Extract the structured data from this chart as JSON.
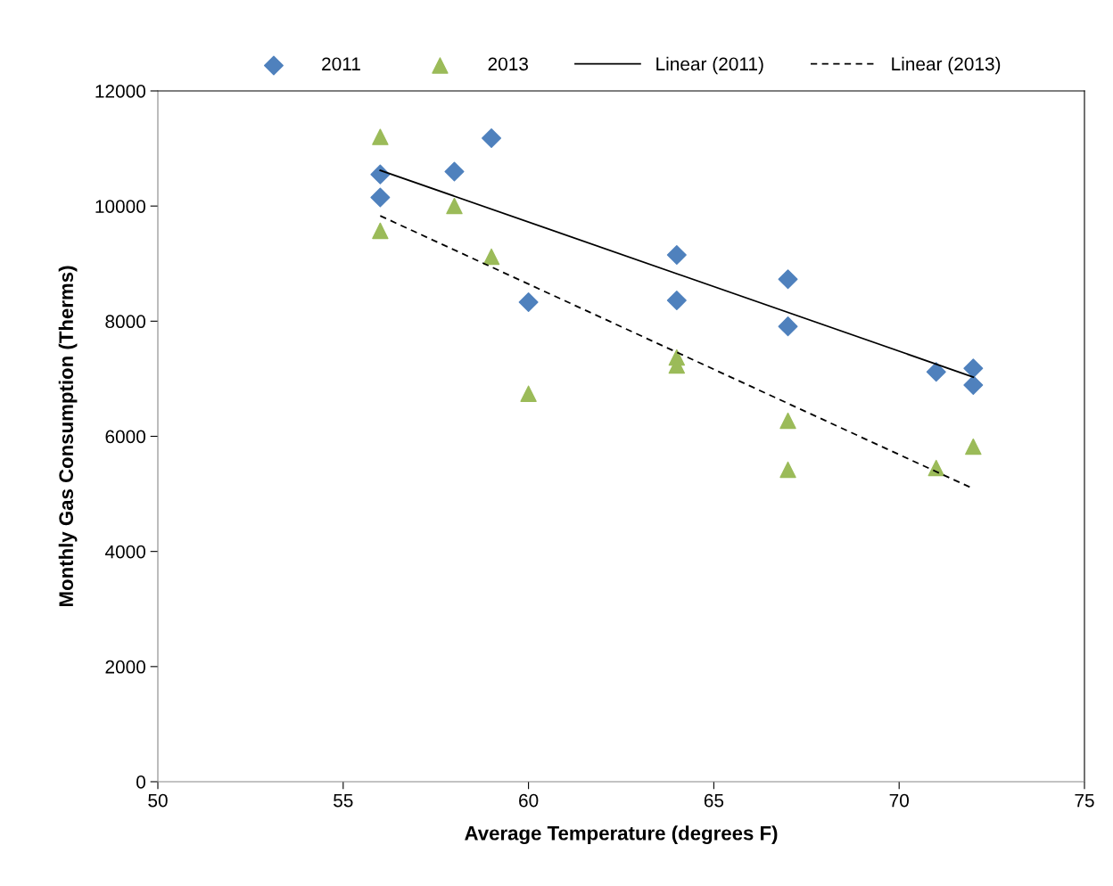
{
  "chart_data": {
    "type": "scatter",
    "xlabel": "Average Temperature (degrees F)",
    "ylabel": "Monthly Gas Consumption (Therms)",
    "xlim": [
      50,
      75
    ],
    "xticks": [
      50,
      55,
      60,
      65,
      70,
      75
    ],
    "ylim": [
      0,
      12000
    ],
    "yticks": [
      0,
      2000,
      4000,
      6000,
      8000,
      10000,
      12000
    ],
    "grid": false,
    "legend": "top",
    "series": [
      {
        "name": "2011",
        "marker": "diamond",
        "color": "#4f81bd",
        "x": [
          56,
          56,
          58,
          59,
          60,
          64,
          64,
          67,
          67,
          71,
          72,
          72
        ],
        "values": [
          10550,
          10150,
          10600,
          11180,
          8330,
          9150,
          8360,
          8730,
          7910,
          7120,
          7180,
          6890
        ]
      },
      {
        "name": "2013",
        "marker": "triangle",
        "color": "#9bbb59",
        "x": [
          56,
          56,
          58,
          59,
          60,
          64,
          64,
          67,
          67,
          71,
          72
        ],
        "values": [
          11200,
          9570,
          10000,
          9120,
          6740,
          7370,
          7230,
          6270,
          5420,
          5450,
          5820
        ]
      },
      {
        "name": "Linear (2011)",
        "type": "line",
        "line_style": "solid",
        "color": "#000000",
        "x": [
          56,
          72
        ],
        "values": [
          10620,
          7030
        ]
      },
      {
        "name": "Linear (2013)",
        "type": "line",
        "line_style": "dashed",
        "color": "#000000",
        "x": [
          56,
          72
        ],
        "values": [
          9830,
          5090
        ]
      }
    ]
  }
}
